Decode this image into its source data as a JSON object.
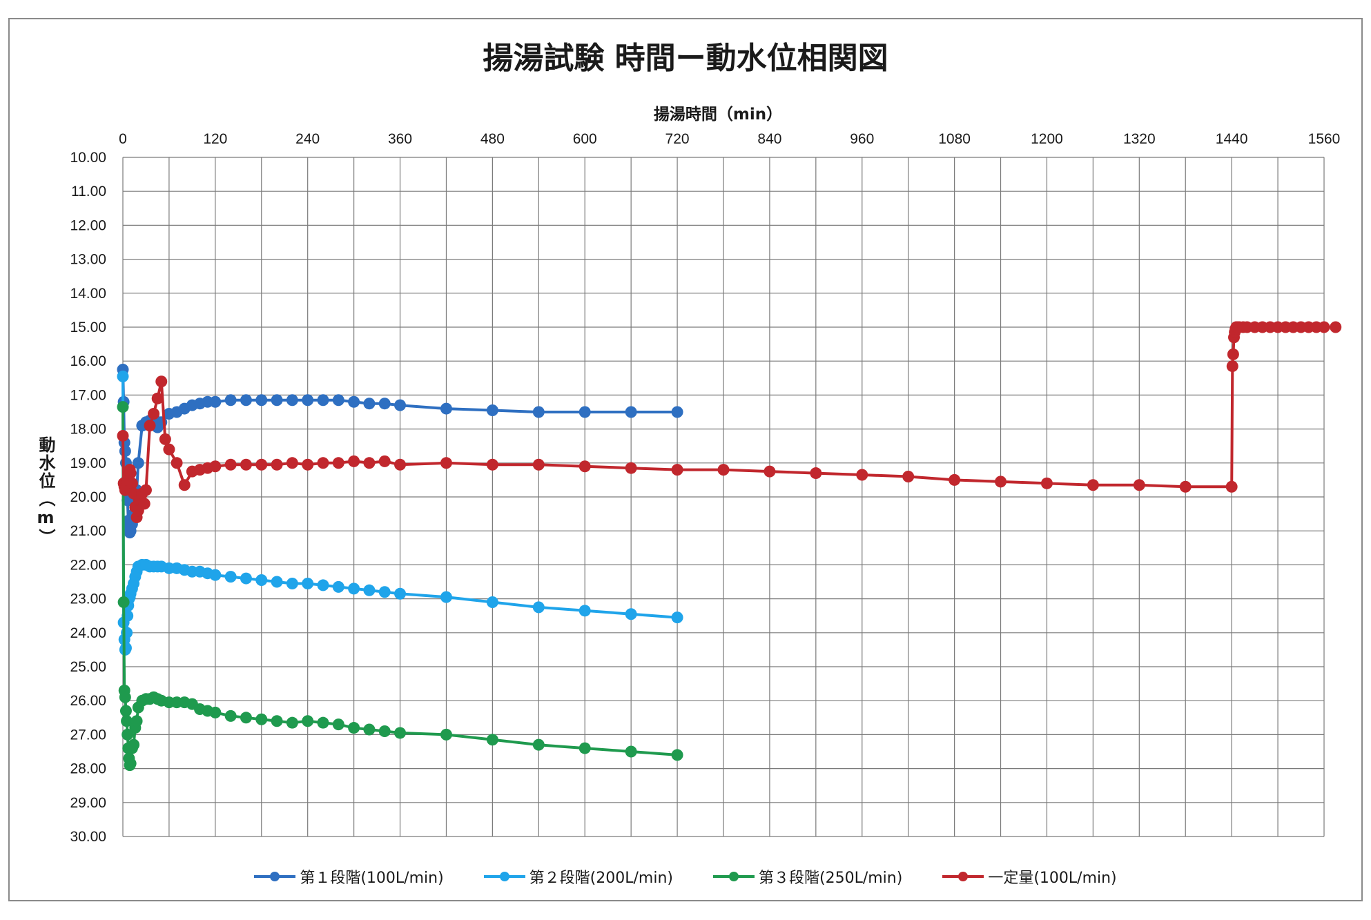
{
  "chart_data": {
    "type": "line",
    "title": "揚湯試験 時間ー動水位相関図",
    "xlabel": "揚湯時間（min）",
    "ylabel": "動水位（m）",
    "xlim": [
      0,
      1560
    ],
    "ylim": [
      10,
      30
    ],
    "y_inverted": true,
    "x_axis_position": "top",
    "grid": true,
    "legend_position": "bottom",
    "x_ticks": [
      "0",
      "120",
      "240",
      "360",
      "480",
      "600",
      "720",
      "840",
      "960",
      "1080",
      "1200",
      "1320",
      "1440",
      "1560"
    ],
    "y_ticks": [
      "10.00",
      "11.00",
      "12.00",
      "13.00",
      "14.00",
      "15.00",
      "16.00",
      "17.00",
      "18.00",
      "19.00",
      "20.00",
      "21.00",
      "22.00",
      "23.00",
      "24.00",
      "25.00",
      "26.00",
      "27.00",
      "28.00",
      "29.00",
      "30.00"
    ],
    "series": [
      {
        "name": "第１段階(100L/min)",
        "color": "#2e6fc1",
        "x": [
          0,
          1,
          2,
          3,
          4,
          5,
          6,
          7,
          8,
          9,
          10,
          12,
          14,
          16,
          18,
          20,
          25,
          30,
          35,
          40,
          45,
          50,
          60,
          70,
          80,
          90,
          100,
          110,
          120,
          140,
          160,
          180,
          200,
          220,
          240,
          260,
          280,
          300,
          320,
          340,
          360,
          420,
          480,
          540,
          600,
          660,
          720
        ],
        "y": [
          16.25,
          17.2,
          18.4,
          18.65,
          19.0,
          19.5,
          20.1,
          20.7,
          20.95,
          21.05,
          21.0,
          20.8,
          20.5,
          20.0,
          19.8,
          19.0,
          17.9,
          17.8,
          17.75,
          17.65,
          17.95,
          17.8,
          17.55,
          17.5,
          17.4,
          17.3,
          17.25,
          17.2,
          17.2,
          17.15,
          17.15,
          17.15,
          17.15,
          17.15,
          17.15,
          17.15,
          17.15,
          17.2,
          17.25,
          17.25,
          17.3,
          17.4,
          17.45,
          17.5,
          17.5,
          17.5,
          17.5
        ]
      },
      {
        "name": "第２段階(200L/min)",
        "color": "#1fa4ea",
        "x": [
          0,
          1,
          2,
          3,
          4,
          5,
          6,
          7,
          8,
          9,
          10,
          12,
          14,
          16,
          18,
          20,
          25,
          30,
          35,
          40,
          45,
          50,
          60,
          70,
          80,
          90,
          100,
          110,
          120,
          140,
          160,
          180,
          200,
          220,
          240,
          260,
          280,
          300,
          320,
          340,
          360,
          420,
          480,
          540,
          600,
          660,
          720
        ],
        "y": [
          16.45,
          23.7,
          24.2,
          24.5,
          24.45,
          24.0,
          23.5,
          23.2,
          23.0,
          22.95,
          22.85,
          22.7,
          22.55,
          22.35,
          22.2,
          22.05,
          22.0,
          22.0,
          22.05,
          22.05,
          22.05,
          22.05,
          22.1,
          22.1,
          22.15,
          22.2,
          22.2,
          22.25,
          22.3,
          22.35,
          22.4,
          22.45,
          22.5,
          22.55,
          22.55,
          22.6,
          22.65,
          22.7,
          22.75,
          22.8,
          22.85,
          22.95,
          23.1,
          23.25,
          23.35,
          23.45,
          23.55
        ]
      },
      {
        "name": "第３段階(250L/min)",
        "color": "#1f9a4e",
        "x": [
          0,
          1,
          2,
          3,
          4,
          5,
          6,
          7,
          8,
          9,
          10,
          12,
          14,
          16,
          18,
          20,
          25,
          30,
          35,
          40,
          45,
          50,
          60,
          70,
          80,
          90,
          100,
          110,
          120,
          140,
          160,
          180,
          200,
          220,
          240,
          260,
          280,
          300,
          320,
          340,
          360,
          420,
          480,
          540,
          600,
          660,
          720
        ],
        "y": [
          17.35,
          23.1,
          25.7,
          25.9,
          26.3,
          26.6,
          27.0,
          27.4,
          27.7,
          27.9,
          27.85,
          27.4,
          27.3,
          26.8,
          26.6,
          26.2,
          26.0,
          25.95,
          25.95,
          25.9,
          25.95,
          26.0,
          26.05,
          26.05,
          26.05,
          26.1,
          26.25,
          26.3,
          26.35,
          26.45,
          26.5,
          26.55,
          26.6,
          26.65,
          26.6,
          26.65,
          26.7,
          26.8,
          26.85,
          26.9,
          26.95,
          27.0,
          27.15,
          27.3,
          27.4,
          27.5,
          27.6
        ]
      },
      {
        "name": "一定量(100L/min)",
        "color": "#c1272d",
        "x": [
          0,
          1,
          2,
          3,
          4,
          5,
          6,
          7,
          8,
          9,
          10,
          12,
          14,
          16,
          18,
          20,
          22,
          25,
          28,
          30,
          35,
          40,
          45,
          50,
          55,
          60,
          70,
          80,
          90,
          100,
          110,
          120,
          140,
          160,
          180,
          200,
          220,
          240,
          260,
          280,
          300,
          320,
          340,
          360,
          420,
          480,
          540,
          600,
          660,
          720,
          780,
          840,
          900,
          960,
          1020,
          1080,
          1140,
          1200,
          1260,
          1320,
          1380,
          1440,
          1441,
          1442,
          1443,
          1444,
          1445,
          1446,
          1447,
          1448,
          1450,
          1455,
          1460,
          1470,
          1480,
          1490,
          1500,
          1510,
          1520,
          1530,
          1540,
          1550,
          1560,
          1575
        ],
        "y": [
          18.2,
          19.6,
          19.7,
          19.8,
          19.7,
          19.6,
          19.5,
          19.4,
          19.3,
          19.2,
          19.3,
          19.6,
          19.9,
          20.3,
          20.6,
          20.4,
          20.1,
          19.9,
          20.2,
          19.8,
          17.9,
          17.55,
          17.1,
          16.6,
          18.3,
          18.6,
          19.0,
          19.65,
          19.25,
          19.2,
          19.15,
          19.1,
          19.05,
          19.05,
          19.05,
          19.05,
          19.0,
          19.05,
          19.0,
          19.0,
          18.95,
          19.0,
          18.95,
          19.05,
          19.0,
          19.05,
          19.05,
          19.1,
          19.15,
          19.2,
          19.2,
          19.25,
          19.3,
          19.35,
          19.4,
          19.5,
          19.55,
          19.6,
          19.65,
          19.65,
          19.7,
          19.7,
          16.15,
          15.8,
          15.3,
          15.15,
          15.05,
          15.0,
          15.0,
          15.0,
          15.0,
          15.0,
          15.0,
          15.0,
          15.0,
          15.0,
          15.0,
          15.0,
          15.0,
          15.0,
          15.0,
          15.0,
          15.0,
          15.0
        ]
      }
    ]
  }
}
